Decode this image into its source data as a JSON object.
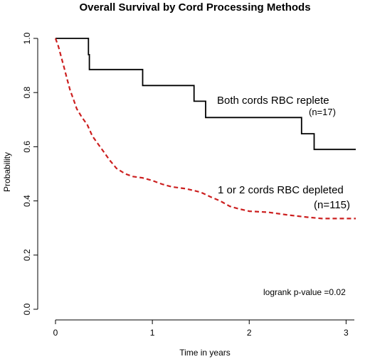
{
  "chart_data": {
    "type": "line",
    "title": "Overall Survival by Cord Processing Methods",
    "xlabel": "Time in years",
    "ylabel": "Probability",
    "xlim": [
      0,
      3.1
    ],
    "ylim": [
      0,
      1.0
    ],
    "x_ticks": [
      "0",
      "1",
      "2",
      "3"
    ],
    "y_ticks": [
      "0.0",
      "0.2",
      "0.4",
      "0.6",
      "0.8",
      "1.0"
    ],
    "grid": false,
    "series": [
      {
        "style": "solid",
        "color": "#000000",
        "points": [
          [
            0,
            1.0
          ],
          [
            0.34,
            1.0
          ],
          [
            0.34,
            0.94
          ],
          [
            0.35,
            0.94
          ],
          [
            0.35,
            0.885
          ],
          [
            0.9,
            0.885
          ],
          [
            0.9,
            0.826
          ],
          [
            1.43,
            0.826
          ],
          [
            1.43,
            0.768
          ],
          [
            1.55,
            0.768
          ],
          [
            1.55,
            0.708
          ],
          [
            2.54,
            0.708
          ],
          [
            2.54,
            0.648
          ],
          [
            2.67,
            0.648
          ],
          [
            2.67,
            0.59
          ],
          [
            3.1,
            0.59
          ]
        ]
      },
      {
        "style": "dashed",
        "color": "#cc1f1f",
        "points": [
          [
            0,
            1.0
          ],
          [
            0.03,
            0.97
          ],
          [
            0.06,
            0.93
          ],
          [
            0.09,
            0.89
          ],
          [
            0.12,
            0.85
          ],
          [
            0.15,
            0.81
          ],
          [
            0.19,
            0.77
          ],
          [
            0.22,
            0.74
          ],
          [
            0.27,
            0.71
          ],
          [
            0.33,
            0.68
          ],
          [
            0.38,
            0.64
          ],
          [
            0.44,
            0.61
          ],
          [
            0.5,
            0.58
          ],
          [
            0.56,
            0.55
          ],
          [
            0.63,
            0.52
          ],
          [
            0.72,
            0.5
          ],
          [
            0.8,
            0.49
          ],
          [
            0.9,
            0.485
          ],
          [
            1.0,
            0.475
          ],
          [
            1.1,
            0.462
          ],
          [
            1.2,
            0.452
          ],
          [
            1.35,
            0.445
          ],
          [
            1.5,
            0.432
          ],
          [
            1.6,
            0.415
          ],
          [
            1.7,
            0.4
          ],
          [
            1.8,
            0.38
          ],
          [
            1.9,
            0.37
          ],
          [
            2.0,
            0.362
          ],
          [
            2.2,
            0.358
          ],
          [
            2.4,
            0.348
          ],
          [
            2.6,
            0.34
          ],
          [
            2.75,
            0.335
          ],
          [
            3.1,
            0.335
          ]
        ]
      }
    ],
    "annotations": {
      "label1": "Both cords RBC replete",
      "n1": "(n=17)",
      "label2": "1 or 2 cords RBC depleted",
      "n2": "(n=115)",
      "pvalue": "logrank p-value =0.02"
    }
  }
}
